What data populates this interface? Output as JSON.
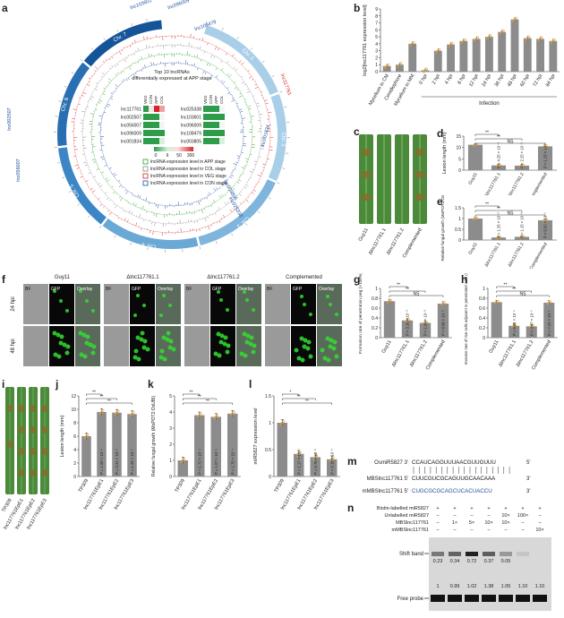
{
  "labels": {
    "a": "a",
    "b": "b",
    "c": "c",
    "d": "d",
    "e": "e",
    "f": "f",
    "g": "g",
    "h": "h",
    "i": "i",
    "j": "j",
    "k": "k",
    "l": "l",
    "m": "m",
    "n": "n"
  },
  "panel_a": {
    "chromosomes": [
      "Chr. 1",
      "Chr. 2",
      "Chr. 3",
      "Chr. 4",
      "Chr. 5",
      "Chr. 6",
      "Chr. 7"
    ],
    "lnc_labels_blue": [
      "lnc103601",
      "lnc096009",
      "lnc108479",
      "lnc025338",
      "lnc002507",
      "lnc056007",
      "lnc003805",
      "lnc001834"
    ],
    "lnc_label_red": "lnc117761",
    "heatmap_title_1": "Top 10 lncRNAs",
    "heatmap_title_2": "differentially expressed at APP stage",
    "col_headers": [
      "VEG",
      "CON",
      "APP",
      "COL"
    ],
    "left_genes": [
      "lnc117761",
      "lnc002507",
      "lnc056007",
      "lnc096009",
      "lnc001834"
    ],
    "right_genes": [
      "lnc025338",
      "lnc103601",
      "lnc096009",
      "lnc108479",
      "lnc003805"
    ],
    "scale_ticks": [
      "0",
      "6",
      "50",
      "300"
    ],
    "legend": [
      {
        "text": "lncRNA expression level in APP stage",
        "color": "#2ca02c"
      },
      {
        "text": "lncRNA expression level in COL stage",
        "color": "#888888"
      },
      {
        "text": "lncRNA expression level in VEG stage",
        "color": "#d62728"
      },
      {
        "text": "lncRNA expression level in CON stage",
        "color": "#1f4e9c"
      }
    ]
  },
  "chart_data": [
    {
      "id": "b",
      "type": "bar",
      "ylabel": "log2[lnc117761 expression level]",
      "ylim": [
        0,
        9
      ],
      "yticks": [
        0,
        1,
        2,
        3,
        4,
        5,
        6,
        7,
        8,
        9
      ],
      "categories": [
        "Mycelium in CM",
        "Conidiophore",
        "Mycelium in MM",
        "0 hpi",
        "2 hpi",
        "4 hpi",
        "8 hpi",
        "12 hpi",
        "24 hpi",
        "36 hpi",
        "48 hpi",
        "60 hpi",
        "72 hpi",
        "84 hpi"
      ],
      "values": [
        0.8,
        1.0,
        4.0,
        0.2,
        3.0,
        3.9,
        4.4,
        4.7,
        5.0,
        5.7,
        7.5,
        4.8,
        4.7,
        4.4
      ],
      "group_label": "Infection"
    },
    {
      "id": "d",
      "type": "bar",
      "ylabel": "Lesion length (mm)",
      "ylim": [
        0,
        15
      ],
      "yticks": [
        0,
        5,
        10,
        15
      ],
      "categories": [
        "Guy11",
        "Δlnc117761.1",
        "Δlnc117761.2",
        "Complemented"
      ],
      "values": [
        11.2,
        2.1,
        2.0,
        10.5
      ],
      "pvals": [
        "P = 4.25 × 10⁻⁹",
        "P = 2.25 × 10⁻⁹",
        "P = 1.23 × 10⁻¹"
      ],
      "sig": [
        "**",
        "**",
        "NS"
      ]
    },
    {
      "id": "e",
      "type": "bar",
      "ylabel": "Relative fungal growth (MoPOT2:OsUBI)",
      "ylim": [
        0,
        1.5
      ],
      "yticks": [
        0,
        0.5,
        1.0,
        1.5
      ],
      "categories": [
        "Guy11",
        "Δlnc117761.1",
        "Δlnc117761.2",
        "Complemented"
      ],
      "values": [
        1.0,
        0.12,
        0.15,
        0.92
      ],
      "pvals": [
        "P = 1.25 × 10⁻³",
        "P = 1.15 × 10⁻³",
        "P = 5.62 × 10⁻¹"
      ],
      "sig": [
        "**",
        "**",
        "NS"
      ]
    },
    {
      "id": "g",
      "type": "bar",
      "ylabel": "Formation rate of penetration peg (×100%)",
      "ylim": [
        0,
        1.0
      ],
      "yticks": [
        0,
        0.2,
        0.4,
        0.6,
        0.8,
        1.0
      ],
      "categories": [
        "Guy11",
        "Δlnc117761.1",
        "Δlnc117761.2",
        "Complemented"
      ],
      "values": [
        0.74,
        0.35,
        0.3,
        0.69
      ],
      "pvals": [
        "P = 3.16 × 10⁻³",
        "P = 1.05 × 10⁻³",
        "P = 8.08 × 10⁻²"
      ],
      "sig": [
        "**",
        "**",
        "NS"
      ]
    },
    {
      "id": "h",
      "type": "bar",
      "ylabel": "Invasion rate of rice cells adjacent to penetrated cells (×100%)",
      "ylim": [
        0,
        1.0
      ],
      "yticks": [
        0,
        0.2,
        0.4,
        0.6,
        0.8,
        1.0
      ],
      "categories": [
        "Guy11",
        "Δlnc117761.1",
        "Δlnc117761.2",
        "Complemented"
      ],
      "values": [
        0.72,
        0.24,
        0.23,
        0.71
      ],
      "pvals": [
        "P = 6.24 × 10⁻⁵",
        "P = 3.47 × 10⁻⁵",
        "P = 7.42 × 10⁻¹"
      ],
      "sig": [
        "**",
        "**",
        "NS"
      ]
    },
    {
      "id": "j",
      "type": "bar",
      "ylabel": "Lesion length (mm)",
      "ylim": [
        0,
        12
      ],
      "yticks": [
        0,
        2,
        4,
        6,
        8,
        10,
        12
      ],
      "categories": [
        "TP309",
        "lnc117761EpE1",
        "lnc117761EpE2",
        "lnc117761EpE3"
      ],
      "values": [
        6.0,
        9.6,
        9.5,
        9.3
      ],
      "pvals": [
        "P = 1.08 × 10⁻⁵",
        "P = 3.31 × 10⁻⁵",
        "P = 1.49 × 10⁻⁵"
      ],
      "sig": [
        "**",
        "**",
        "**"
      ]
    },
    {
      "id": "k",
      "type": "bar",
      "ylabel": "Relative fungal growth (MoPOT2:OsUBI)",
      "ylim": [
        0,
        5
      ],
      "yticks": [
        0,
        1,
        2,
        3,
        4,
        5
      ],
      "categories": [
        "TP309",
        "lnc117761EpE1",
        "lnc117761EpE2",
        "lnc117761EpE3"
      ],
      "values": [
        1.0,
        3.8,
        3.7,
        3.9
      ],
      "pvals": [
        "P = 1.72 × 10⁻⁴",
        "P = 1.07 × 10⁻⁴",
        "P = 1.70 × 10⁻⁴"
      ],
      "sig": [
        "**",
        "**",
        "**"
      ]
    },
    {
      "id": "l",
      "type": "bar",
      "ylabel": "miR5827 expression level",
      "ylim": [
        0,
        1.5
      ],
      "yticks": [
        0,
        0.5,
        1.0,
        1.5
      ],
      "categories": [
        "TP309",
        "lnc117761EpE1",
        "lnc117761EpE2",
        "lnc117761EpE3"
      ],
      "values": [
        1.0,
        0.42,
        0.36,
        0.32
      ],
      "pvals": [
        "P = 1.17 × 10⁻²",
        "P = 6.75 × 10⁻³",
        "P = 6.10 × 10⁻³"
      ],
      "sig": [
        "*",
        "**",
        "**"
      ]
    }
  ],
  "panel_c": {
    "strains": [
      "Guy11",
      "Δlnc117761.1",
      "Δlnc117761.2",
      "Complemented"
    ]
  },
  "panel_f": {
    "strains": [
      "Guy11",
      "Δlnc117761.1",
      "Δlnc117761.2",
      "Complemented"
    ],
    "channels": [
      "BF",
      "GFP",
      "Overlay"
    ],
    "rows": [
      "24 hpi",
      "48 hpi"
    ]
  },
  "panel_i": {
    "lines": [
      "TP309",
      "lnc117761EpE1",
      "lnc117761EpE2",
      "lnc117761EpE3"
    ]
  },
  "panel_m": {
    "rows": [
      {
        "name": "OsmiR5827 3'",
        "seq": "CCAUCAGGUUUAACGUUGUUU",
        "end": "5'"
      },
      {
        "name": "MBSlnc117761 5'",
        "seq": "CUUCGUCGCAGUUGCAACAAA",
        "end": "3'"
      },
      {
        "name": "mMBSlnc117761 5'",
        "seq": "CUGCGCGCAGCUCACUACCU",
        "end": "3'"
      }
    ]
  },
  "panel_n": {
    "row_labels": [
      "Biotin-labelled miR5827",
      "Unlabelled miR5827",
      "MBSlnc117761",
      "mMBSlnc117761"
    ],
    "row_values": [
      [
        "+",
        "+",
        "+",
        "+",
        "+",
        "+",
        "+"
      ],
      [
        "–",
        "–",
        "–",
        "–",
        "10×",
        "100×",
        "–"
      ],
      [
        "–",
        "1×",
        "5×",
        "10×",
        "10×",
        "–",
        "–"
      ],
      [
        "–",
        "–",
        "–",
        "–",
        "–",
        "–",
        "10×"
      ]
    ],
    "shift_band": "Shift band",
    "free_probe": "Free probe",
    "shift_values": [
      "0.23",
      "0.34",
      "0.72",
      "0.37",
      "0.05",
      ""
    ],
    "free_values": [
      "1",
      "0.99",
      "1.02",
      "1.38",
      "1.05",
      "1.10",
      "1.10"
    ]
  }
}
